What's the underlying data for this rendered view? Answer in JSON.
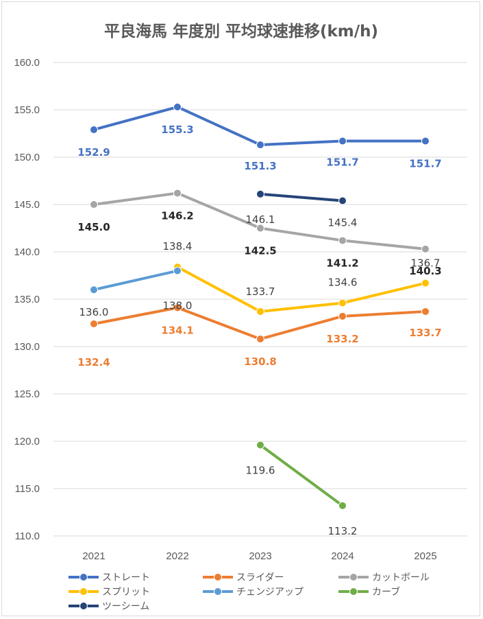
{
  "chart_data": {
    "type": "line",
    "title": "平良海馬 年度別 平均球速推移(km/h)",
    "xlabel": "",
    "ylabel": "",
    "categories": [
      "2021",
      "2022",
      "2023",
      "2024",
      "2025"
    ],
    "ylim": [
      110,
      160
    ],
    "yticks": [
      "160.0",
      "155.0",
      "150.0",
      "145.0",
      "140.0",
      "135.0",
      "130.0",
      "125.0",
      "120.0",
      "115.0",
      "110.0"
    ],
    "grid": true,
    "legend_position": "bottom",
    "series": [
      {
        "name": "ストレート",
        "color": "#4472C4",
        "values": [
          152.9,
          155.3,
          151.3,
          151.7,
          151.7
        ],
        "labels": [
          "152.9",
          "155.3",
          "151.3",
          "151.7",
          "151.7"
        ],
        "label_color": "#4472C4",
        "label_bold": true
      },
      {
        "name": "スライダー",
        "color": "#ED7D31",
        "values": [
          132.4,
          134.1,
          130.8,
          133.2,
          133.7
        ],
        "labels": [
          "132.4",
          "134.1",
          "130.8",
          "133.2",
          "133.7"
        ],
        "label_color": "#ED7D31",
        "label_bold": true
      },
      {
        "name": "カットボール",
        "color": "#A5A5A5",
        "values": [
          145.0,
          146.2,
          142.5,
          141.2,
          140.3
        ],
        "labels": [
          "145.0",
          "146.2",
          "142.5",
          "141.2",
          "140.3"
        ],
        "label_color": "#262626",
        "label_bold": true
      },
      {
        "name": "スプリット",
        "color": "#FFC000",
        "values": [
          null,
          138.4,
          133.7,
          134.6,
          136.7
        ],
        "labels": [
          null,
          "138.4",
          "133.7",
          "134.6",
          "136.7"
        ],
        "label_color": "#404040",
        "label_bold": false
      },
      {
        "name": "チェンジアップ",
        "color": "#5B9BD5",
        "values": [
          136.0,
          138.0,
          null,
          null,
          null
        ],
        "labels": [
          "136.0",
          "138.0",
          null,
          null,
          null
        ],
        "label_color": "#404040",
        "label_bold": false
      },
      {
        "name": "カーブ",
        "color": "#70AD47",
        "values": [
          null,
          null,
          119.6,
          113.2,
          null
        ],
        "labels": [
          null,
          null,
          "119.6",
          "113.2",
          null
        ],
        "label_color": "#404040",
        "label_bold": false
      },
      {
        "name": "ツーシーム",
        "color": "#264478",
        "values": [
          null,
          null,
          146.1,
          145.4,
          null
        ],
        "labels": [
          null,
          null,
          "146.1",
          "145.4",
          null
        ],
        "label_color": "#404040",
        "label_bold": false
      }
    ]
  }
}
